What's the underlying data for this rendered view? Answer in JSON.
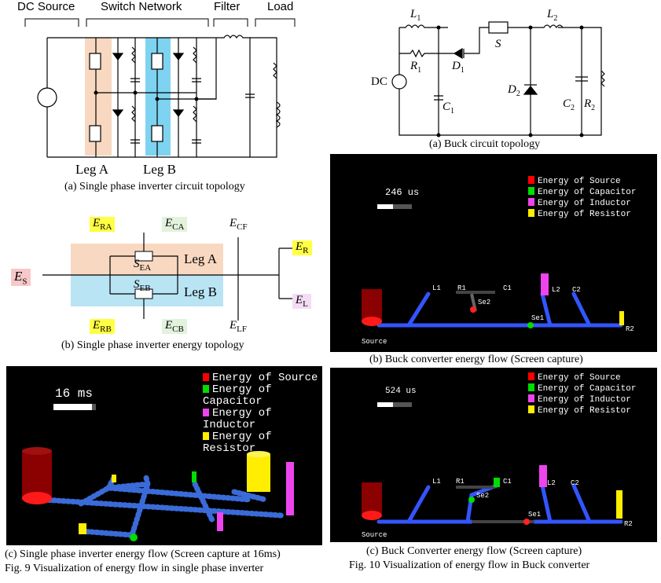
{
  "fig9": {
    "header": {
      "dc_source": "DC Source",
      "switch_network": "Switch Network",
      "filter": "Filter",
      "load": "Load"
    },
    "leg_a": "Leg A",
    "leg_b": "Leg B",
    "caption_a": "(a) Single phase inverter circuit topology",
    "energy": {
      "es": "E",
      "es_sub": "S",
      "era": "E",
      "era_sub": "RA",
      "eca": "E",
      "eca_sub": "CA",
      "ecf": "E",
      "ecf_sub": "CF",
      "er": "E",
      "er_sub": "R",
      "el": "E",
      "el_sub": "L",
      "erb": "E",
      "erb_sub": "RB",
      "ecb": "E",
      "ecb_sub": "CB",
      "elf": "E",
      "elf_sub": "LF",
      "sea": "S",
      "sea_sub": "EA",
      "seb": "S",
      "seb_sub": "EB",
      "leg_a": "Leg A",
      "leg_b": "Leg B"
    },
    "caption_b": "(b) Single phase inverter energy topology",
    "screen": {
      "time": "16 ms",
      "time_progress": 0.9,
      "legend": [
        "Energy of Source",
        "Energy of Capacitor",
        "Energy of Inductor",
        "Energy of Resistor"
      ]
    },
    "caption_c": "(c) Single phase inverter energy flow (Screen capture at 16ms)",
    "title": "Fig. 9 Visualization of energy flow in single phase inverter"
  },
  "fig10": {
    "circuit": {
      "l1": "L",
      "l1_sub": "1",
      "l2": "L",
      "l2_sub": "2",
      "r1": "R",
      "r1_sub": "1",
      "d1": "D",
      "d1_sub": "1",
      "s": "S",
      "dc": "DC",
      "d2": "D",
      "d2_sub": "2",
      "c1": "C",
      "c1_sub": "1",
      "c2": "C",
      "c2_sub": "2",
      "r2": "R",
      "r2_sub": "2"
    },
    "caption_a": "(a) Buck circuit topology",
    "screen_b": {
      "time": "246 us",
      "time_progress": 0.45,
      "legend": [
        "Energy of Source",
        "Energy of Capacitor",
        "Energy of Inductor",
        "Energy of Resistor"
      ],
      "nodes": {
        "l1": "L1",
        "r1": "R1",
        "c1": "C1",
        "se2": "Se2",
        "l2": "L2",
        "c2": "C2",
        "se1": "Se1",
        "r2": "R2",
        "source": "Source"
      }
    },
    "caption_b": "(b) Buck converter energy flow (Screen capture)",
    "screen_c": {
      "time": "524 us",
      "time_progress": 0.45,
      "legend": [
        "Energy of Source",
        "Energy of Capacitor",
        "Energy of Inductor",
        "Energy of Resistor"
      ],
      "nodes": {
        "l1": "L1",
        "r1": "R1",
        "c1": "C1",
        "se2": "Se2",
        "l2": "L2",
        "c2": "C2",
        "se1": "Se1",
        "r2": "R2",
        "source": "Source"
      }
    },
    "caption_c": "(c) Buck Converter energy flow (Screen capture)",
    "title": "Fig. 10 Visualization of energy flow in Buck converter"
  },
  "colors": {
    "source": "#ff0000",
    "capacitor": "#00dd00",
    "inductor": "#ee44ee",
    "resistor": "#ffee00",
    "flow": "#2f4fff",
    "legA_bg": "#f8d8c0",
    "legB_bg": "#7ed3f0",
    "er_box": "#ffff44",
    "es_box": "#f8c8c8",
    "el_box": "#f4dcf4",
    "green_box": "#e2f2dc"
  }
}
